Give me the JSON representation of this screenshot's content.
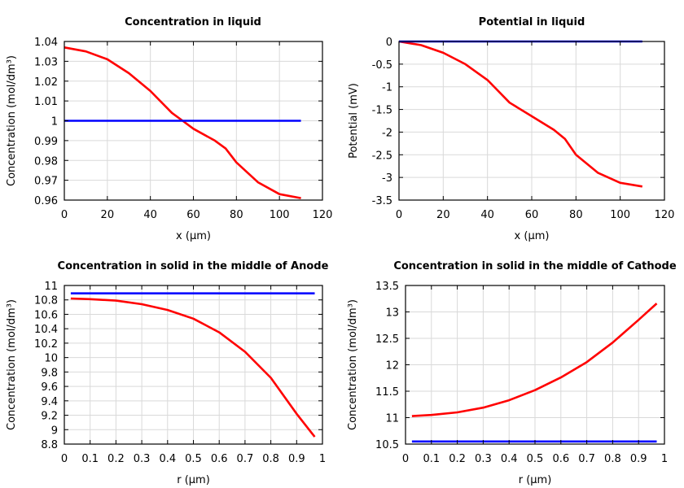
{
  "chart_data": [
    {
      "type": "line",
      "title": "Concentration in liquid",
      "xlabel": "x (µm)",
      "ylabel": "Concentration (mol/dm³)",
      "xlim": [
        0,
        120
      ],
      "ylim": [
        0.96,
        1.04
      ],
      "xticks": [
        0,
        20,
        40,
        60,
        80,
        100,
        120
      ],
      "yticks": [
        0.96,
        0.97,
        0.98,
        0.99,
        1,
        1.01,
        1.02,
        1.03,
        1.04
      ],
      "grid": true,
      "series": [
        {
          "color": "#ff0000",
          "x": [
            0,
            10,
            20,
            30,
            40,
            50,
            55,
            60,
            70,
            75,
            80,
            90,
            100,
            110
          ],
          "y": [
            1.037,
            1.035,
            1.031,
            1.024,
            1.015,
            1.004,
            1.0,
            0.996,
            0.99,
            0.986,
            0.979,
            0.969,
            0.963,
            0.961
          ]
        },
        {
          "color": "#0000ff",
          "x": [
            0,
            110
          ],
          "y": [
            1.0,
            1.0
          ]
        }
      ]
    },
    {
      "type": "line",
      "title": "Potential in liquid",
      "xlabel": "x (µm)",
      "ylabel": "Potential (mV)",
      "xlim": [
        0,
        120
      ],
      "ylim": [
        -3.5,
        0
      ],
      "xticks": [
        0,
        20,
        40,
        60,
        80,
        100,
        120
      ],
      "yticks": [
        -3.5,
        -3,
        -2.5,
        -2,
        -1.5,
        -1,
        -0.5,
        0
      ],
      "grid": true,
      "series": [
        {
          "color": "#ff0000",
          "x": [
            0,
            10,
            20,
            30,
            40,
            50,
            60,
            70,
            75,
            80,
            90,
            100,
            110
          ],
          "y": [
            0,
            -0.08,
            -0.25,
            -0.5,
            -0.85,
            -1.35,
            -1.65,
            -1.95,
            -2.15,
            -2.5,
            -2.9,
            -3.12,
            -3.2
          ]
        },
        {
          "color": "#0000ff",
          "x": [
            0,
            110
          ],
          "y": [
            0,
            0
          ]
        }
      ]
    },
    {
      "type": "line",
      "title": "Concentration in solid in the middle of Anode",
      "xlabel": "r (µm)",
      "ylabel": "Concentration (mol/dm³)",
      "xlim": [
        0,
        1
      ],
      "ylim": [
        8.8,
        11
      ],
      "xticks": [
        0,
        0.1,
        0.2,
        0.3,
        0.4,
        0.5,
        0.6,
        0.7,
        0.8,
        0.9,
        1
      ],
      "yticks": [
        8.8,
        9,
        9.2,
        9.4,
        9.6,
        9.8,
        10,
        10.2,
        10.4,
        10.6,
        10.8,
        11
      ],
      "grid": true,
      "series": [
        {
          "color": "#ff0000",
          "x": [
            0.025,
            0.1,
            0.2,
            0.3,
            0.4,
            0.5,
            0.6,
            0.7,
            0.8,
            0.9,
            0.97
          ],
          "y": [
            10.82,
            10.81,
            10.79,
            10.74,
            10.66,
            10.54,
            10.35,
            10.08,
            9.72,
            9.22,
            8.9
          ]
        },
        {
          "color": "#0000ff",
          "x": [
            0.025,
            0.97
          ],
          "y": [
            10.89,
            10.89
          ]
        }
      ]
    },
    {
      "type": "line",
      "title": "Concentration in solid in the middle of Cathode",
      "xlabel": "r (µm)",
      "ylabel": "Concentration (mol/dm³)",
      "xlim": [
        0,
        1
      ],
      "ylim": [
        10.5,
        13.5
      ],
      "xticks": [
        0,
        0.1,
        0.2,
        0.3,
        0.4,
        0.5,
        0.6,
        0.7,
        0.8,
        0.9,
        1
      ],
      "yticks": [
        10.5,
        11,
        11.5,
        12,
        12.5,
        13,
        13.5
      ],
      "grid": true,
      "series": [
        {
          "color": "#ff0000",
          "x": [
            0.025,
            0.1,
            0.2,
            0.3,
            0.4,
            0.5,
            0.6,
            0.7,
            0.8,
            0.9,
            0.97
          ],
          "y": [
            11.03,
            11.05,
            11.1,
            11.19,
            11.33,
            11.52,
            11.76,
            12.05,
            12.42,
            12.85,
            13.16
          ]
        },
        {
          "color": "#0000ff",
          "x": [
            0.025,
            0.97
          ],
          "y": [
            10.55,
            10.55
          ]
        }
      ]
    }
  ]
}
